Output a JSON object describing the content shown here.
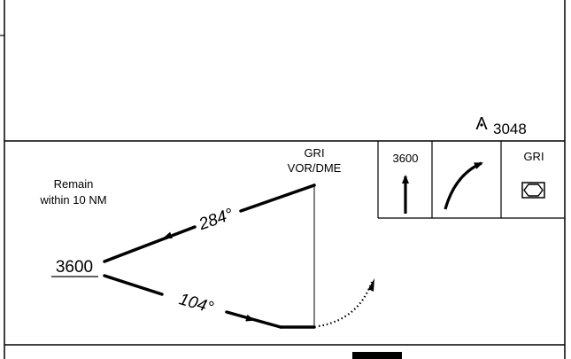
{
  "elevation": {
    "symbol": "Λ",
    "value": "3048"
  },
  "fix": {
    "name": "GRI",
    "type": "VOR/DME"
  },
  "note": {
    "line1": "Remain",
    "line2": "within 10 NM"
  },
  "holding": {
    "altitude": "3600",
    "inbound_course": "284°",
    "outbound_course": "104°"
  },
  "profile": {
    "altitude": "3600",
    "fix_name": "GRI"
  }
}
